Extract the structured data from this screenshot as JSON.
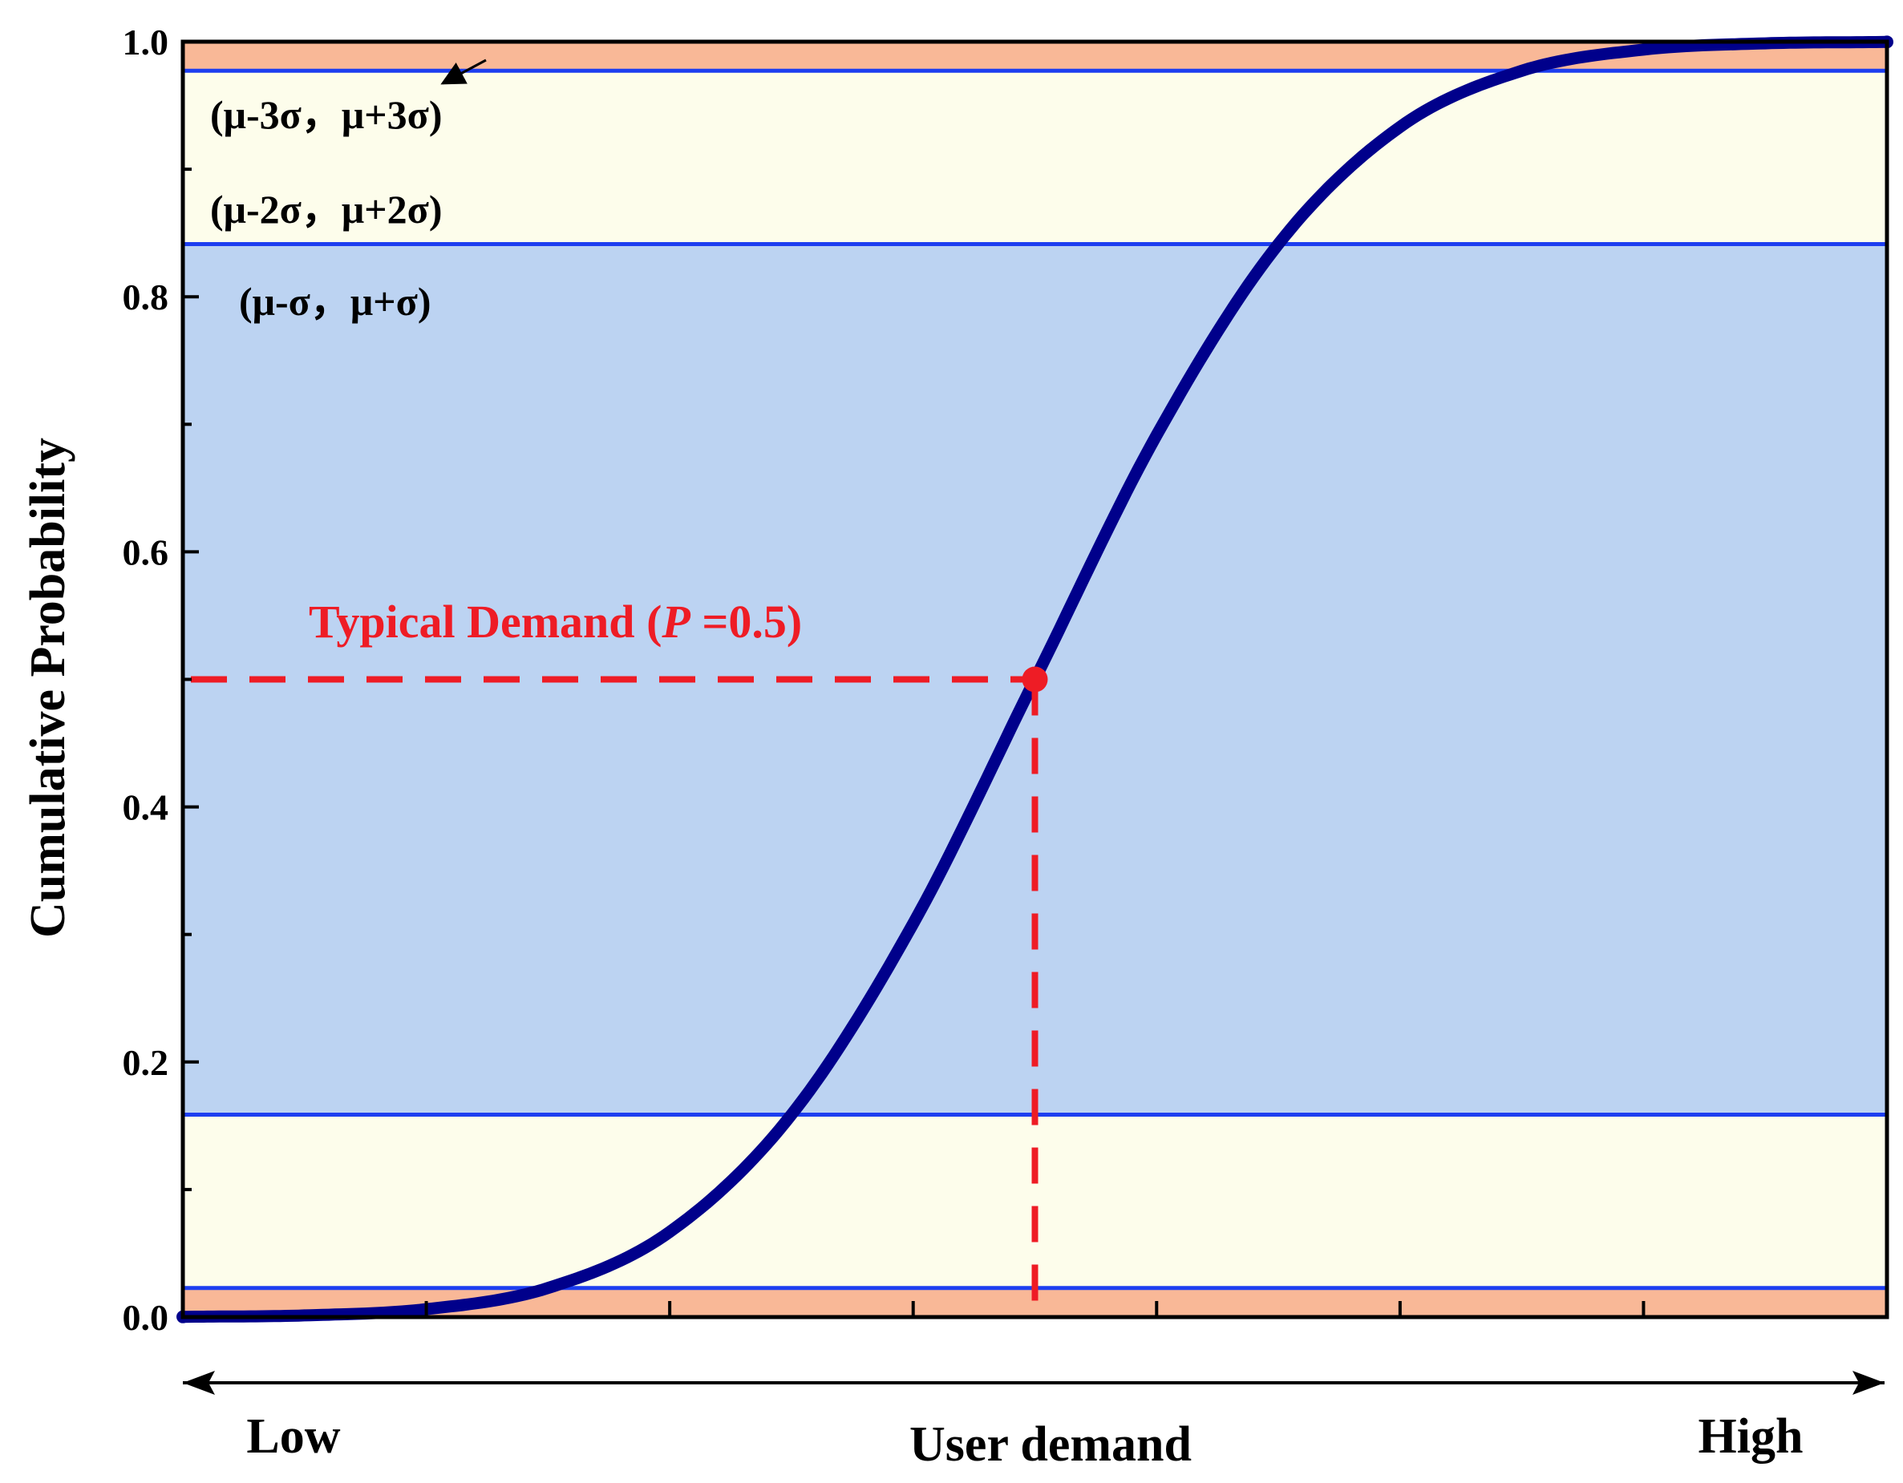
{
  "chart_data": {
    "type": "line",
    "ylabel": "Cumulative Probability",
    "xlabel": "User demand",
    "x_low_label": "Low",
    "x_high_label": "High",
    "ylim": [
      0,
      1
    ],
    "xlim": [
      -3.5,
      3.5
    ],
    "y_ticks": [
      "0.0",
      "0.2",
      "0.4",
      "0.6",
      "0.8",
      "1.0"
    ],
    "y_tick_values": [
      0,
      0.2,
      0.4,
      0.6,
      0.8,
      1.0
    ],
    "x_minor_ticks": [
      -2.5,
      -1.5,
      -0.5,
      0.5,
      1.5,
      2.5
    ],
    "grid": false,
    "series": [
      {
        "description": "normal CDF of user demand",
        "color": "#00008b",
        "x": [
          -3.5,
          -3.0,
          -2.5,
          -2.0,
          -1.5,
          -1.0,
          -0.5,
          0.0,
          0.5,
          1.0,
          1.5,
          2.0,
          2.5,
          3.0,
          3.5
        ],
        "y": [
          0.0002,
          0.0013,
          0.0062,
          0.0228,
          0.0668,
          0.1587,
          0.3085,
          0.5,
          0.6915,
          0.8413,
          0.9332,
          0.9772,
          0.9938,
          0.9987,
          0.9998
        ]
      }
    ],
    "bands": [
      {
        "label": "(μ-3σ，μ+3σ)",
        "from": 0.0,
        "to": 0.0228,
        "color": "#f9b897",
        "region": "outer-low"
      },
      {
        "from": 0.9772,
        "to": 1.0,
        "color": "#f9b897",
        "region": "outer-high"
      },
      {
        "label": "(μ-2σ，μ+2σ)",
        "from": 0.0228,
        "to": 0.1587,
        "color": "#fdfdeb",
        "region": "mid-low"
      },
      {
        "from": 0.8413,
        "to": 0.9772,
        "color": "#fdfdeb",
        "region": "mid-high"
      },
      {
        "label": "(μ-σ，μ+σ)",
        "from": 0.1587,
        "to": 0.8413,
        "color": "#bcd3f2",
        "region": "inner"
      }
    ],
    "band_line_color": "#1d3ef0",
    "band_lines": [
      0.0228,
      0.1587,
      0.8413,
      0.9772
    ],
    "annotation": {
      "text_prefix": "Typical Demand (",
      "text_italic": "P",
      "text_suffix": " =0.5)",
      "x": 0.0,
      "y": 0.5,
      "color": "#ee1c25"
    }
  }
}
